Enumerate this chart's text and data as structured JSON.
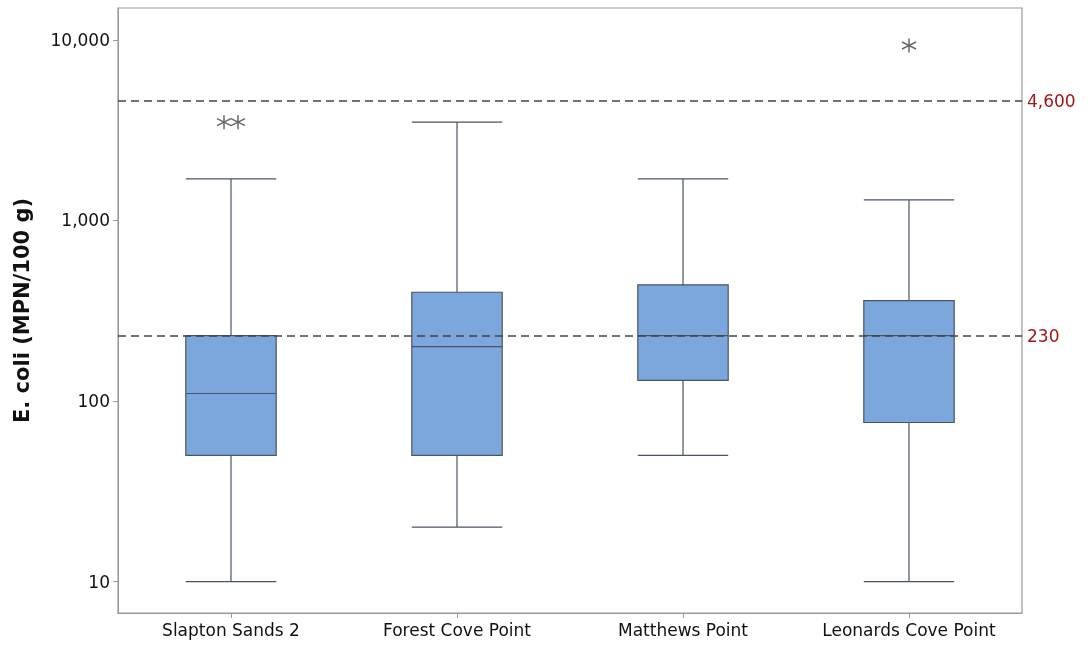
{
  "chart_data": {
    "type": "box",
    "ylabel": "E. coli (MPN/100 g)",
    "categories": [
      "Slapton Sands 2",
      "Forest Cove Point",
      "Matthews Point",
      "Leonards Cove Point"
    ],
    "boxes": [
      {
        "low": 10,
        "q1": 50,
        "median": 110,
        "q3": 230,
        "high": 1700,
        "outliers": [
          3500,
          3500
        ]
      },
      {
        "low": 20,
        "q1": 50,
        "median": 200,
        "q3": 400,
        "high": 3500
      },
      {
        "low": 50,
        "q1": 130,
        "median": 230,
        "q3": 440,
        "high": 1700
      },
      {
        "low": 10,
        "q1": 76,
        "median": 230,
        "q3": 360,
        "high": 1300,
        "outliers": [
          9300
        ]
      }
    ],
    "color": "#7ba7dc",
    "log": true,
    "ylim": [
      6.7,
      15000
    ],
    "yticks": [
      {
        "value": 10,
        "label": "10"
      },
      {
        "value": 100,
        "label": "100"
      },
      {
        "value": 1000,
        "label": "1,000"
      },
      {
        "value": 10000,
        "label": "10,000"
      }
    ],
    "ref_lines": [
      {
        "axis": "y",
        "value": 4600,
        "label": "4,600"
      },
      {
        "axis": "y",
        "value": 230,
        "label": "230"
      }
    ],
    "grid": false
  }
}
